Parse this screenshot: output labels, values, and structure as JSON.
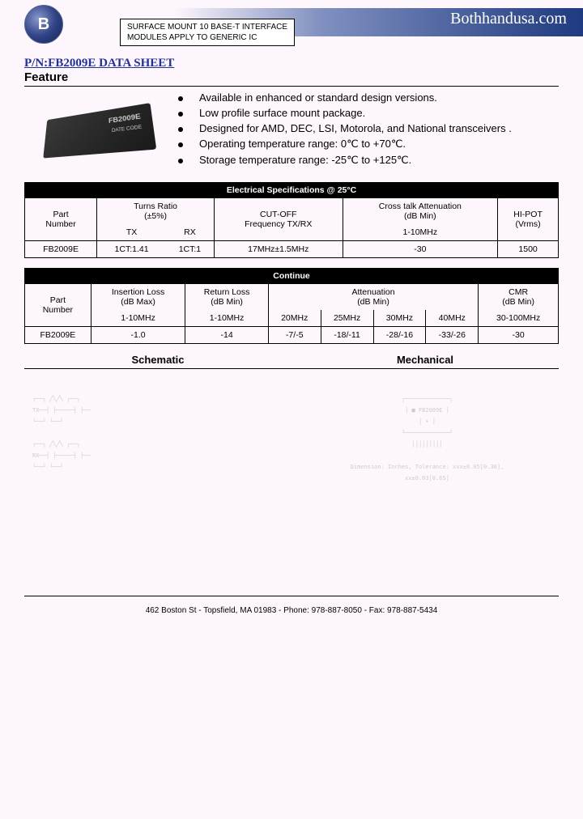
{
  "header": {
    "box_line1": "SURFACE MOUNT 10 BASE-T INTERFACE",
    "box_line2": "MODULES APPLY TO GENERIC IC",
    "brand": "Bothhandusa.com",
    "logo_text": "B"
  },
  "pn_title": "P/N:FB2009E DATA SHEET",
  "feature_title": "Feature",
  "chip": {
    "label": "FB2009E",
    "small": "DATE CODE"
  },
  "features": [
    "Available in enhanced or standard design versions.",
    "Low profile surface mount package.",
    "Designed for AMD, DEC, LSI, Motorola, and National transceivers .",
    "Operating temperature range: 0℃ to +70℃.",
    "Storage temperature range: -25℃ to +125℃."
  ],
  "table1": {
    "banner": "Electrical Specifications @ 25°C",
    "headers": {
      "part": "Part\nNumber",
      "turns": "Turns Ratio\n(±5%)",
      "tx": "TX",
      "rx": "RX",
      "cutoff": "CUT-OFF\nFrequency TX/RX",
      "crosstalk": "Cross talk Attenuation\n(dB Min)",
      "crosstalk_range": "1-10MHz",
      "hipot": "HI-POT\n(Vrms)"
    },
    "row": {
      "part": "FB2009E",
      "tx": "1CT:1.41",
      "rx": "1CT:1",
      "cutoff": "17MHz±1.5MHz",
      "crosstalk": "-30",
      "hipot": "1500"
    }
  },
  "table2": {
    "banner": "Continue",
    "headers": {
      "part": "Part\nNumber",
      "insertion": "Insertion Loss\n(dB Max)",
      "insertion_range": "1-10MHz",
      "return": "Return Loss\n(dB Min)",
      "return_range": "1-10MHz",
      "attenuation": "Attenuation\n(dB Min)",
      "att_20": "20MHz",
      "att_25": "25MHz",
      "att_30": "30MHz",
      "att_40": "40MHz",
      "cmr": "CMR\n(dB Min)",
      "cmr_range": "30-100MHz"
    },
    "row": {
      "part": "FB2009E",
      "insertion": "-1.0",
      "return": "-14",
      "att_20": "-7/-5",
      "att_25": "-18/-11",
      "att_30": "-28/-16",
      "att_40": "-33/-26",
      "cmr": "-30"
    }
  },
  "sections": {
    "schematic": "Schematic",
    "mechanical": "Mechanical"
  },
  "diagram_notes": {
    "tolerance": "Dimension: Inches,  Tolerance: xxx±0.05[0.30],\nxx±0.03[0.65]"
  },
  "footer": "462 Boston St - Topsfield, MA 01983 - Phone: 978-887-8050 - Fax: 978-887-5434"
}
